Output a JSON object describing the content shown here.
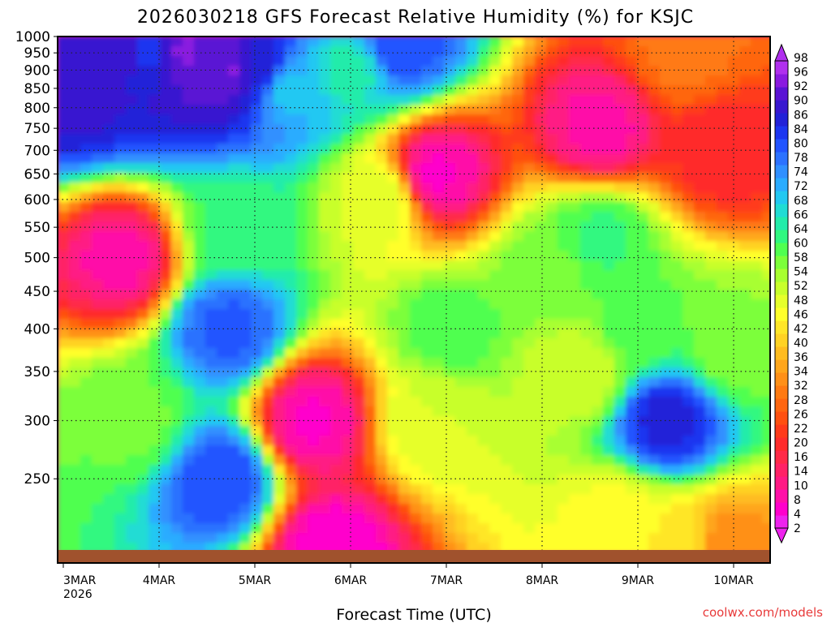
{
  "chart_data": {
    "type": "heatmap",
    "title": "2026030218 GFS Forecast Relative Humidity (%) for KSJC",
    "xlabel": "Forecast Time (UTC)",
    "ylabel": "",
    "credit": "coolwx.com/models",
    "x_ticks": [
      "3MAR",
      "4MAR",
      "5MAR",
      "6MAR",
      "7MAR",
      "8MAR",
      "9MAR",
      "10MAR"
    ],
    "x_year": "2026",
    "y_ticks": [
      "250",
      "300",
      "350",
      "400",
      "450",
      "500",
      "550",
      "600",
      "650",
      "700",
      "750",
      "800",
      "850",
      "900",
      "950",
      "1000"
    ],
    "y_scale": "log-pressure",
    "ylim": [
      1000,
      200
    ],
    "grid": true,
    "colorbar": {
      "values": [
        "2",
        "4",
        "8",
        "10",
        "14",
        "16",
        "20",
        "22",
        "26",
        "28",
        "32",
        "34",
        "36",
        "40",
        "42",
        "46",
        "48",
        "52",
        "54",
        "58",
        "60",
        "64",
        "66",
        "68",
        "72",
        "74",
        "78",
        "80",
        "84",
        "86",
        "90",
        "92",
        "96",
        "98"
      ],
      "colors": [
        "#ee22ee",
        "#ff00cc",
        "#ff10a8",
        "#ff1a84",
        "#ff2266",
        "#ff2a48",
        "#ff2c2c",
        "#ff3a1a",
        "#ff5010",
        "#ff6610",
        "#ff7a12",
        "#ff9018",
        "#ffa61c",
        "#ffbc20",
        "#ffd224",
        "#ffe628",
        "#ffff2a",
        "#e6ff2a",
        "#c8ff2a",
        "#a8ff30",
        "#7cff3a",
        "#50ff50",
        "#30f880",
        "#22ecaa",
        "#20dcd4",
        "#22c8f2",
        "#2aacff",
        "#3090ff",
        "#2c72ff",
        "#2254ff",
        "#1c36f0",
        "#2222d8",
        "#3818d0",
        "#5a14d4",
        "#8a1ae0",
        "#b030ee"
      ]
    },
    "fields": [
      {
        "x": 0.1,
        "p": 850,
        "rh": 92
      },
      {
        "x": 0.35,
        "p": 900,
        "rh": 90
      },
      {
        "x": 0.6,
        "p": 950,
        "rh": 92
      },
      {
        "x": 0.9,
        "p": 950,
        "rh": 86
      },
      {
        "x": 1.25,
        "p": 950,
        "rh": 96
      },
      {
        "x": 1.55,
        "p": 930,
        "rh": 94
      },
      {
        "x": 1.75,
        "p": 900,
        "rh": 96
      },
      {
        "x": 2.05,
        "p": 900,
        "rh": 88
      },
      {
        "x": 2.35,
        "p": 850,
        "rh": 72
      },
      {
        "x": 3.0,
        "p": 900,
        "rh": 66
      },
      {
        "x": 3.5,
        "p": 970,
        "rh": 84
      },
      {
        "x": 0.75,
        "p": 300,
        "rh": 58
      },
      {
        "x": 1.65,
        "p": 250,
        "rh": 84
      },
      {
        "x": 1.72,
        "p": 400,
        "rh": 82
      },
      {
        "x": 1.8,
        "p": 550,
        "rh": 62
      },
      {
        "x": 4.05,
        "p": 400,
        "rh": 60
      },
      {
        "x": 3.85,
        "p": 300,
        "rh": 50
      },
      {
        "x": 3.3,
        "p": 600,
        "rh": 50
      },
      {
        "x": 5.1,
        "p": 480,
        "rh": 58
      },
      {
        "x": 5.6,
        "p": 530,
        "rh": 62
      },
      {
        "x": 5.4,
        "p": 350,
        "rh": 50
      },
      {
        "x": 6.3,
        "p": 300,
        "rh": 88
      },
      {
        "x": 6.0,
        "p": 400,
        "rh": 60
      },
      {
        "x": 7.0,
        "p": 380,
        "rh": 56
      },
      {
        "x": 6.45,
        "p": 200,
        "rh": 44
      },
      {
        "x": 5.8,
        "p": 220,
        "rh": 46
      },
      {
        "x": 0.6,
        "p": 500,
        "rh": 6
      },
      {
        "x": 2.6,
        "p": 300,
        "rh": 4
      },
      {
        "x": 2.8,
        "p": 200,
        "rh": 2
      },
      {
        "x": 3.9,
        "p": 650,
        "rh": 4
      },
      {
        "x": 5.6,
        "p": 750,
        "rh": 6
      },
      {
        "x": 6.9,
        "p": 700,
        "rh": 16
      },
      {
        "x": 6.5,
        "p": 950,
        "rh": 28
      },
      {
        "x": 6.9,
        "p": 200,
        "rh": 30
      }
    ]
  }
}
